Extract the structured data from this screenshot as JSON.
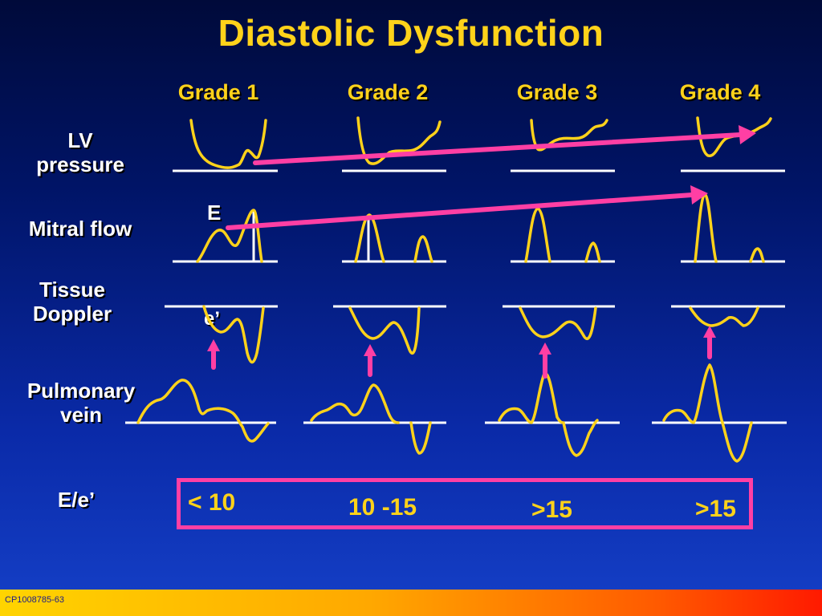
{
  "title": "Diastolic Dysfunction",
  "grades": [
    "Grade 1",
    "Grade 2",
    "Grade 3",
    "Grade 4"
  ],
  "rows": {
    "lv": "LV\npressure",
    "mitral": "Mitral flow",
    "tissue": "Tissue\nDoppler",
    "pulmonary": "Pulmonary\nvein",
    "ratio": "E/e’"
  },
  "annotations": {
    "e_wave": "E",
    "e_prime": "e’"
  },
  "ratio_values": [
    "< 10",
    "10 -15",
    ">15",
    ">15"
  ],
  "footer_code": "CP1008785-63",
  "colors": {
    "title": "#ffd21a",
    "curve": "#ffd21a",
    "arrow": "#ff3fa4",
    "baseline": "#ffffff"
  }
}
